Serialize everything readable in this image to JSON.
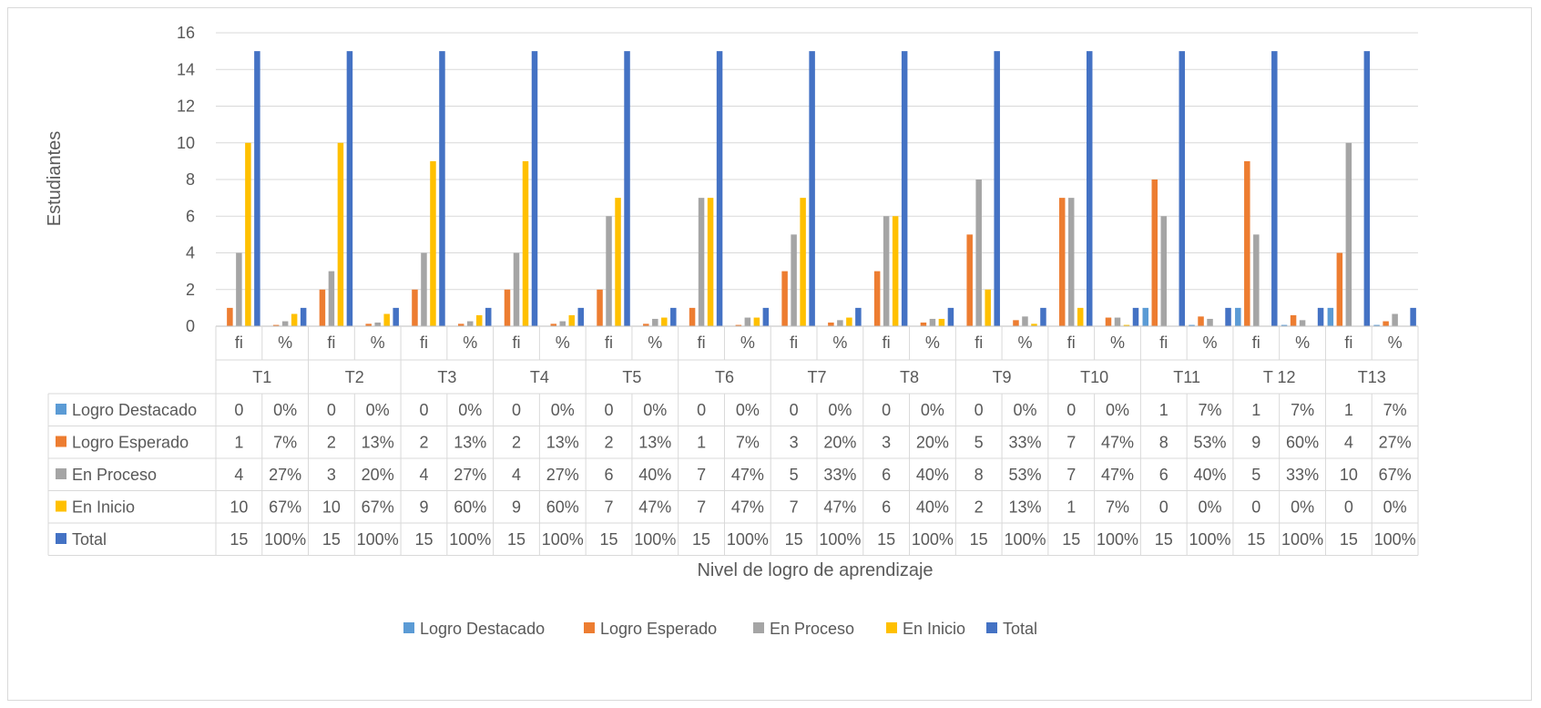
{
  "chart_data": {
    "type": "bar",
    "title": "",
    "xlabel": "Nivel de logro de aprendizaje",
    "ylabel": "Estudiantes",
    "ylim": [
      0,
      16
    ],
    "yticks": [
      "0",
      "2",
      "4",
      "6",
      "8",
      "10",
      "12",
      "14",
      "16"
    ],
    "grid": true,
    "legend_position": "bottom",
    "groups": [
      "T1",
      "T2",
      "T3",
      "T4",
      "T5",
      "T6",
      "T7",
      "T8",
      "T9",
      "T10",
      "T11",
      "T 12",
      "T13"
    ],
    "subcategories": [
      "fi",
      "%"
    ],
    "series": [
      {
        "name": "Logro Destacado",
        "color": "#5b9bd5",
        "fi": [
          0,
          0,
          0,
          0,
          0,
          0,
          0,
          0,
          0,
          0,
          1,
          1,
          1
        ],
        "pct": [
          0,
          0,
          0,
          0,
          0,
          0,
          0,
          0,
          0,
          0,
          0.07,
          0.07,
          0.07
        ],
        "fi_labels": [
          "0",
          "0",
          "0",
          "0",
          "0",
          "0",
          "0",
          "0",
          "0",
          "0",
          "1",
          "1",
          "1"
        ],
        "pct_labels": [
          "0%",
          "0%",
          "0%",
          "0%",
          "0%",
          "0%",
          "0%",
          "0%",
          "0%",
          "0%",
          "7%",
          "7%",
          "7%"
        ]
      },
      {
        "name": "Logro Esperado",
        "color": "#ed7d31",
        "fi": [
          1,
          2,
          2,
          2,
          2,
          1,
          3,
          3,
          5,
          7,
          8,
          9,
          4
        ],
        "pct": [
          0.07,
          0.13,
          0.13,
          0.13,
          0.13,
          0.07,
          0.2,
          0.2,
          0.33,
          0.47,
          0.53,
          0.6,
          0.27
        ],
        "fi_labels": [
          "1",
          "2",
          "2",
          "2",
          "2",
          "1",
          "3",
          "3",
          "5",
          "7",
          "8",
          "9",
          "4"
        ],
        "pct_labels": [
          "7%",
          "13%",
          "13%",
          "13%",
          "13%",
          "7%",
          "20%",
          "20%",
          "33%",
          "47%",
          "53%",
          "60%",
          "27%"
        ]
      },
      {
        "name": "En Proceso",
        "color": "#a5a5a5",
        "fi": [
          4,
          3,
          4,
          4,
          6,
          7,
          5,
          6,
          8,
          7,
          6,
          5,
          10
        ],
        "pct": [
          0.27,
          0.2,
          0.27,
          0.27,
          0.4,
          0.47,
          0.33,
          0.4,
          0.53,
          0.47,
          0.4,
          0.33,
          0.67
        ],
        "fi_labels": [
          "4",
          "3",
          "4",
          "4",
          "6",
          "7",
          "5",
          "6",
          "8",
          "7",
          "6",
          "5",
          "10"
        ],
        "pct_labels": [
          "27%",
          "20%",
          "27%",
          "27%",
          "40%",
          "47%",
          "33%",
          "40%",
          "53%",
          "47%",
          "40%",
          "33%",
          "67%"
        ]
      },
      {
        "name": "En Inicio",
        "color": "#ffc000",
        "fi": [
          10,
          10,
          9,
          9,
          7,
          7,
          7,
          6,
          2,
          1,
          0,
          0,
          0
        ],
        "pct": [
          0.67,
          0.67,
          0.6,
          0.6,
          0.47,
          0.47,
          0.47,
          0.4,
          0.13,
          0.07,
          0,
          0,
          0
        ],
        "fi_labels": [
          "10",
          "10",
          "9",
          "9",
          "7",
          "7",
          "7",
          "6",
          "2",
          "1",
          "0",
          "0",
          "0"
        ],
        "pct_labels": [
          "67%",
          "67%",
          "60%",
          "60%",
          "47%",
          "47%",
          "47%",
          "40%",
          "13%",
          "7%",
          "0%",
          "0%",
          "0%"
        ]
      },
      {
        "name": "Total",
        "color": "#4472c4",
        "fi": [
          15,
          15,
          15,
          15,
          15,
          15,
          15,
          15,
          15,
          15,
          15,
          15,
          15
        ],
        "pct": [
          1,
          1,
          1,
          1,
          1,
          1,
          1,
          1,
          1,
          1,
          1,
          1,
          1
        ],
        "fi_labels": [
          "15",
          "15",
          "15",
          "15",
          "15",
          "15",
          "15",
          "15",
          "15",
          "15",
          "15",
          "15",
          "15"
        ],
        "pct_labels": [
          "100%",
          "100%",
          "100%",
          "100%",
          "100%",
          "100%",
          "100%",
          "100%",
          "100%",
          "100%",
          "100%",
          "100%",
          "100%"
        ]
      }
    ]
  },
  "colors": {
    "grid": "#d9d9d9",
    "text": "#595959",
    "table_border": "#d9d9d9"
  }
}
